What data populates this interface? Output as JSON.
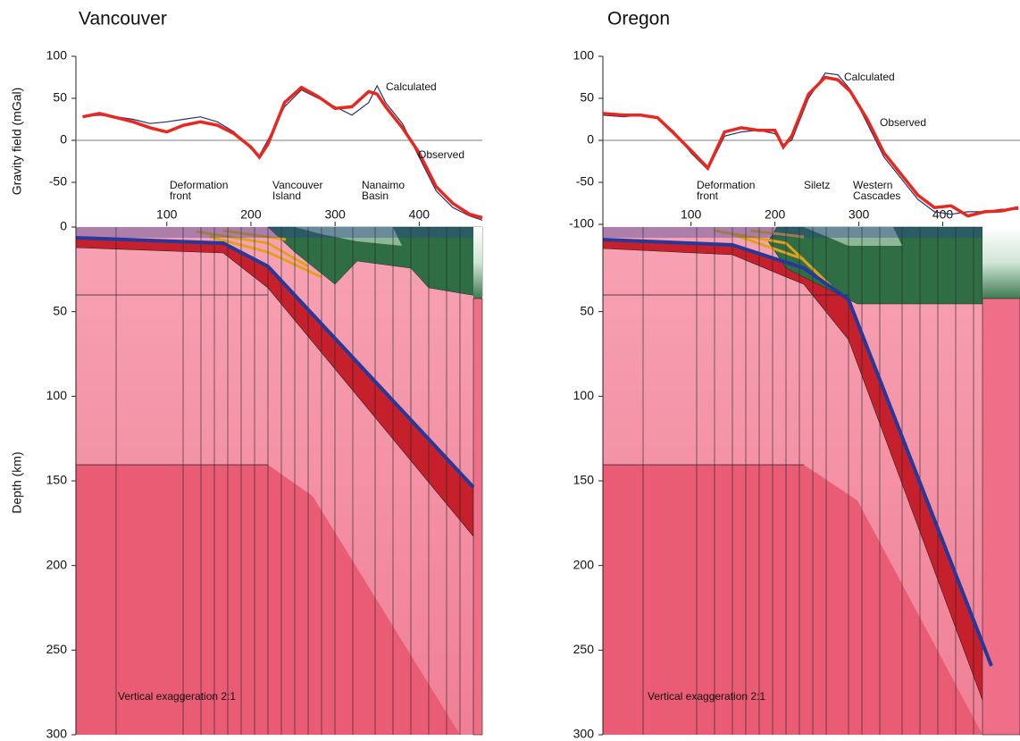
{
  "chart_data": [
    {
      "type": "line",
      "title": "Vancouver",
      "ylabel": "Gravity field (mGal)",
      "xlim": [
        -8,
        475
      ],
      "xticks": [
        100,
        200,
        300,
        400
      ],
      "ylim": [
        -100,
        100
      ],
      "yticks": [
        100,
        50,
        0,
        -50
      ],
      "x": [
        0,
        20,
        40,
        60,
        80,
        100,
        120,
        140,
        160,
        180,
        200,
        210,
        220,
        240,
        260,
        280,
        300,
        320,
        340,
        350,
        360,
        380,
        400,
        420,
        440,
        460,
        475
      ],
      "series": [
        {
          "name": "Calculated",
          "color": "#26306e",
          "values": [
            28,
            30,
            28,
            25,
            20,
            22,
            25,
            28,
            22,
            10,
            -10,
            -18,
            0,
            40,
            60,
            50,
            40,
            30,
            45,
            65,
            45,
            20,
            -20,
            -60,
            -80,
            -90,
            -95
          ]
        },
        {
          "name": "Observed",
          "color": "#e8281e",
          "values": [
            28,
            32,
            27,
            22,
            15,
            10,
            18,
            22,
            18,
            8,
            -8,
            -20,
            -5,
            45,
            63,
            52,
            38,
            40,
            58,
            55,
            40,
            15,
            -15,
            -55,
            -75,
            -88,
            -92
          ]
        }
      ],
      "annotations": [
        [
          "Deformation",
          "front"
        ],
        [
          "Vancouver",
          "Island"
        ],
        [
          "Nanaimo",
          "Basin"
        ]
      ],
      "note": "Vertical exaggeration 2:1",
      "depth": {
        "ylabel": "Depth (km)",
        "ylim": [
          0,
          300
        ],
        "yticks": [
          0,
          50,
          100,
          150,
          200,
          250,
          300
        ]
      }
    },
    {
      "type": "line",
      "title": "Oregon",
      "xlim": [
        -5,
        492
      ],
      "xticks": [
        100,
        200,
        300,
        400
      ],
      "ylim": [
        -100,
        100
      ],
      "yticks": [
        100,
        50,
        0,
        -50,
        -100
      ],
      "x": [
        -5,
        20,
        40,
        60,
        80,
        100,
        120,
        140,
        160,
        180,
        200,
        210,
        220,
        240,
        260,
        275,
        290,
        310,
        330,
        350,
        370,
        390,
        410,
        430,
        450,
        470,
        490
      ],
      "series": [
        {
          "name": "Calculated",
          "color": "#26306e",
          "values": [
            30,
            28,
            30,
            28,
            10,
            -15,
            -35,
            5,
            10,
            12,
            8,
            -5,
            0,
            50,
            80,
            78,
            60,
            20,
            -20,
            -45,
            -70,
            -85,
            -88,
            -85,
            -85,
            -82,
            -82
          ]
        },
        {
          "name": "Observed",
          "color": "#e8281e",
          "values": [
            32,
            30,
            30,
            27,
            8,
            -12,
            -33,
            10,
            15,
            12,
            12,
            -8,
            5,
            55,
            75,
            72,
            58,
            25,
            -15,
            -40,
            -65,
            -80,
            -78,
            -90,
            -85,
            -84,
            -80
          ]
        }
      ],
      "annotations": [
        [
          "Deformation",
          "front"
        ],
        [
          "Siletz"
        ],
        [
          "Western",
          "Cascades"
        ]
      ],
      "note": "Vertical exaggeration 2:1",
      "depth": {
        "ylim": [
          0,
          300
        ],
        "yticks": [
          50,
          100,
          150,
          200,
          250,
          300
        ]
      }
    }
  ]
}
